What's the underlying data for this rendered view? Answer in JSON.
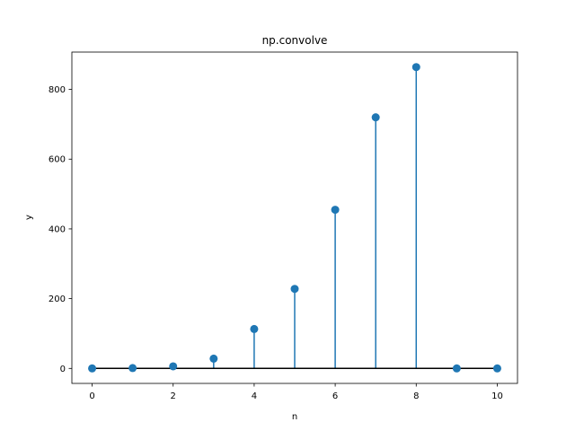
{
  "chart_data": {
    "type": "stem",
    "title": "np.convolve",
    "xlabel": "n",
    "ylabel": "y",
    "x": [
      0,
      1,
      2,
      3,
      4,
      5,
      6,
      7,
      8,
      9,
      10
    ],
    "y": [
      0,
      1,
      6,
      28,
      113,
      228,
      455,
      720,
      864,
      0,
      0
    ],
    "xlim": [
      -0.5,
      10.5
    ],
    "ylim": [
      -43,
      907
    ],
    "xticks": [
      0,
      2,
      4,
      6,
      8,
      10
    ],
    "yticks": [
      0,
      200,
      400,
      600,
      800
    ],
    "grid": false,
    "colors": {
      "stem": "#1f77b4",
      "marker": "#1f77b4",
      "baseline": "#000000"
    }
  }
}
